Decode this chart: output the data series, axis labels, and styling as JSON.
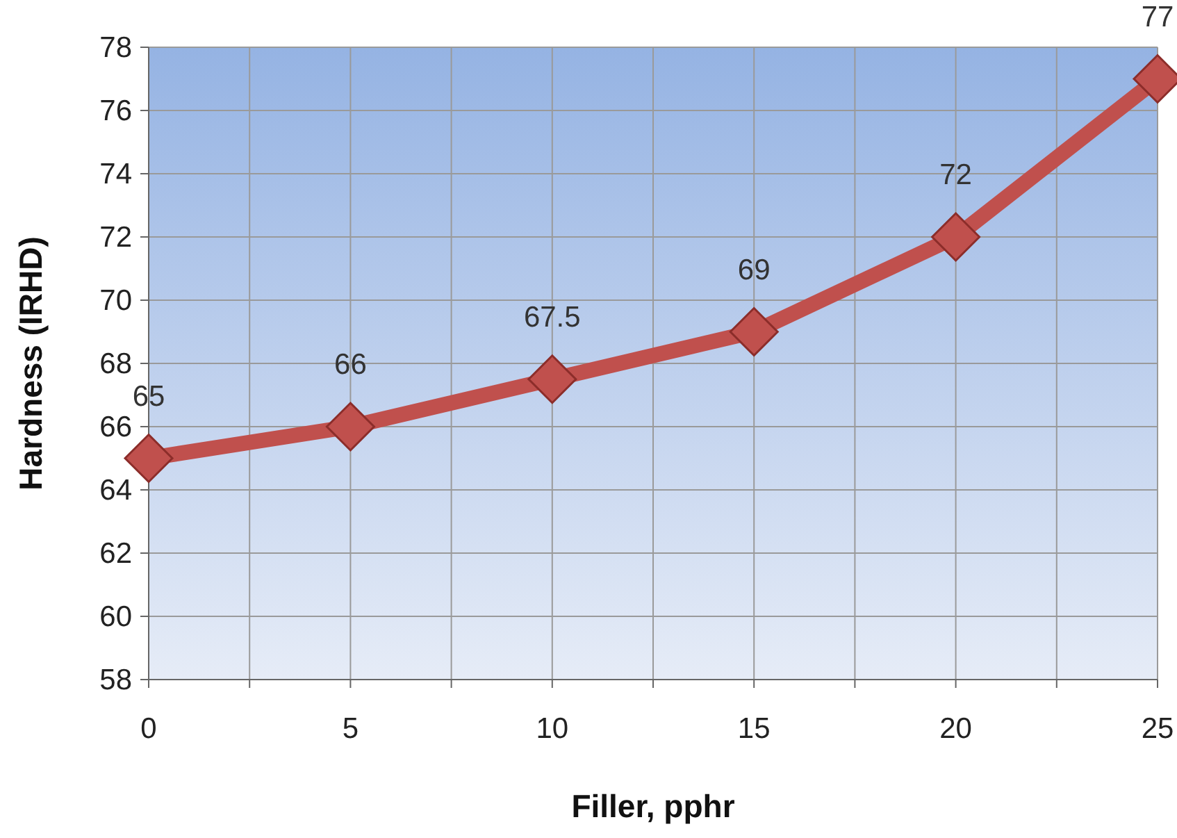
{
  "chart_data": {
    "type": "line",
    "xlabel": "Filler, pphr",
    "ylabel": "Hardness (IRHD)",
    "x": [
      0,
      5,
      10,
      15,
      20,
      25
    ],
    "series": [
      {
        "color": "#c0504d",
        "values": [
          65,
          66,
          67.5,
          69,
          72,
          77
        ]
      }
    ],
    "xlim": [
      0,
      25
    ],
    "xticks": [
      0,
      {
        "value": 2.5,
        "label": null
      },
      5,
      {
        "value": 7.5,
        "label": null
      },
      10,
      {
        "value": 12.5,
        "label": null
      },
      15,
      {
        "value": 17.5,
        "label": null
      },
      20,
      {
        "value": 22.5,
        "label": null
      },
      25
    ],
    "ylim": [
      58,
      78
    ],
    "yticks": [
      58,
      60,
      62,
      64,
      66,
      68,
      70,
      72,
      74,
      76,
      78
    ],
    "grid": true,
    "marker": "diamond",
    "line_style": "solid",
    "data_labels": true
  }
}
